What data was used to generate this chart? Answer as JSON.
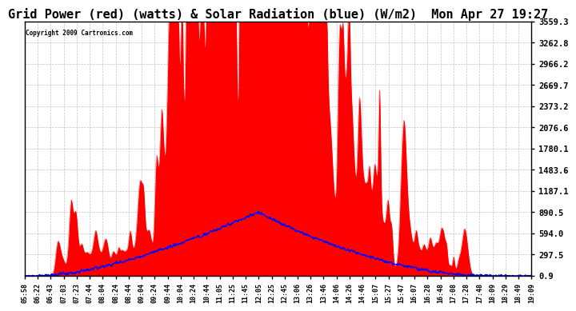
{
  "title": "Grid Power (red) (watts) & Solar Radiation (blue) (W/m2)  Mon Apr 27 19:27",
  "copyright": "Copyright 2009 Cartronics.com",
  "background_color": "#ffffff",
  "plot_bg_color": "#ffffff",
  "grid_color": "#aaaaaa",
  "title_fontsize": 11,
  "yticks": [
    0.9,
    297.5,
    594.0,
    890.5,
    1187.1,
    1483.6,
    1780.1,
    2076.6,
    2373.2,
    2669.7,
    2966.2,
    3262.8,
    3559.3
  ],
  "ymin": 0.9,
  "ymax": 3559.3,
  "red_color": "#ff0000",
  "blue_color": "#0000ff",
  "x_tick_labels": [
    "05:58",
    "06:22",
    "06:43",
    "07:03",
    "07:23",
    "07:44",
    "08:04",
    "08:24",
    "08:44",
    "09:04",
    "09:24",
    "09:44",
    "10:04",
    "10:24",
    "10:44",
    "11:05",
    "11:25",
    "11:45",
    "12:05",
    "12:25",
    "12:45",
    "13:06",
    "13:26",
    "13:46",
    "14:06",
    "14:26",
    "14:46",
    "15:07",
    "15:27",
    "15:47",
    "16:07",
    "16:28",
    "16:48",
    "17:08",
    "17:28",
    "17:48",
    "18:09",
    "18:29",
    "18:49",
    "19:09"
  ]
}
